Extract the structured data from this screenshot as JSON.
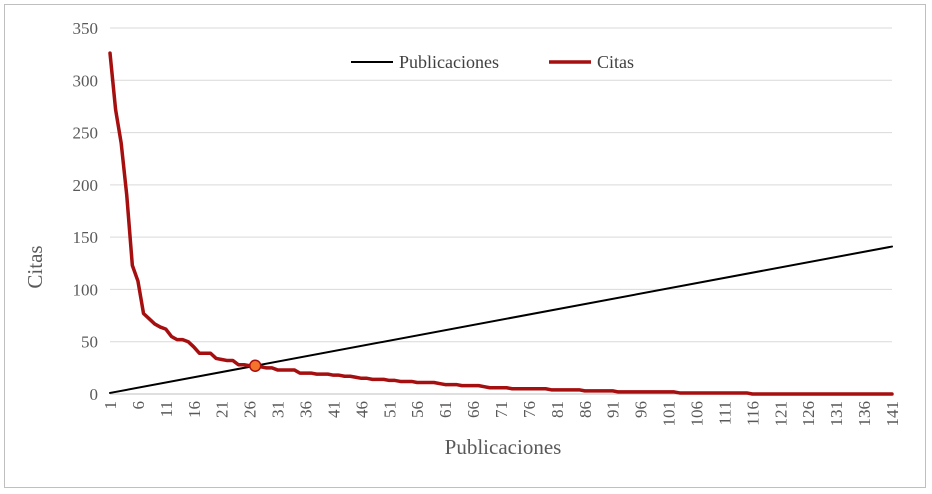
{
  "chart_data": {
    "type": "line",
    "xlabel": "Publicaciones",
    "ylabel": "Citas",
    "ylim": [
      0,
      350
    ],
    "yticks": [
      0,
      50,
      100,
      150,
      200,
      250,
      300,
      350
    ],
    "x_tick_labels": [
      "1",
      "6",
      "11",
      "16",
      "21",
      "26",
      "31",
      "36",
      "41",
      "46",
      "51",
      "56",
      "61",
      "66",
      "71",
      "76",
      "81",
      "86",
      "91",
      "96",
      "101",
      "106",
      "111",
      "116",
      "121",
      "126",
      "131",
      "136",
      "141"
    ],
    "grid": true,
    "legend_position": "top-center",
    "series": [
      {
        "name": "Publicaciones",
        "color": "#000000",
        "x": [
          1,
          141
        ],
        "values": [
          1,
          141
        ]
      },
      {
        "name": "Citas",
        "color": "#a50f0f",
        "x": [
          1,
          2,
          3,
          4,
          5,
          6,
          7,
          8,
          9,
          10,
          11,
          12,
          13,
          14,
          15,
          16,
          17,
          18,
          19,
          20,
          21,
          22,
          23,
          24,
          25,
          26,
          27,
          28,
          29,
          30,
          31,
          32,
          33,
          34,
          35,
          36,
          37,
          38,
          39,
          40,
          41,
          42,
          43,
          44,
          45,
          46,
          47,
          48,
          49,
          50,
          51,
          52,
          53,
          54,
          55,
          56,
          57,
          58,
          59,
          60,
          61,
          62,
          63,
          64,
          65,
          66,
          67,
          68,
          69,
          70,
          71,
          72,
          73,
          74,
          75,
          76,
          77,
          78,
          79,
          80,
          81,
          82,
          83,
          84,
          85,
          86,
          87,
          88,
          89,
          90,
          91,
          92,
          93,
          94,
          95,
          96,
          97,
          98,
          99,
          100,
          101,
          102,
          103,
          104,
          105,
          106,
          107,
          108,
          109,
          110,
          111,
          112,
          113,
          114,
          115,
          116,
          117,
          118,
          119,
          120,
          121,
          122,
          123,
          124,
          125,
          126,
          127,
          128,
          129,
          130,
          131,
          132,
          133,
          134,
          135,
          136,
          137,
          138,
          139,
          140,
          141
        ],
        "values": [
          326,
          272,
          240,
          190,
          123,
          108,
          77,
          72,
          67,
          64,
          62,
          55,
          52,
          52,
          50,
          45,
          39,
          39,
          39,
          34,
          33,
          32,
          32,
          28,
          28,
          27,
          26,
          26,
          25,
          25,
          23,
          23,
          23,
          23,
          20,
          20,
          20,
          19,
          19,
          19,
          18,
          18,
          17,
          17,
          16,
          15,
          15,
          14,
          14,
          14,
          13,
          13,
          12,
          12,
          12,
          11,
          11,
          11,
          11,
          10,
          9,
          9,
          9,
          8,
          8,
          8,
          8,
          7,
          6,
          6,
          6,
          6,
          5,
          5,
          5,
          5,
          5,
          5,
          5,
          4,
          4,
          4,
          4,
          4,
          4,
          3,
          3,
          3,
          3,
          3,
          3,
          2,
          2,
          2,
          2,
          2,
          2,
          2,
          2,
          2,
          2,
          2,
          1,
          1,
          1,
          1,
          1,
          1,
          1,
          1,
          1,
          1,
          1,
          1,
          1,
          0,
          0,
          0,
          0,
          0,
          0,
          0,
          0,
          0,
          0,
          0,
          0,
          0,
          0,
          0,
          0,
          0,
          0,
          0,
          0,
          0,
          0,
          0,
          0,
          0,
          0
        ]
      }
    ],
    "markers": [
      {
        "x": 27,
        "y": 27,
        "color": "#f4742b"
      }
    ]
  }
}
